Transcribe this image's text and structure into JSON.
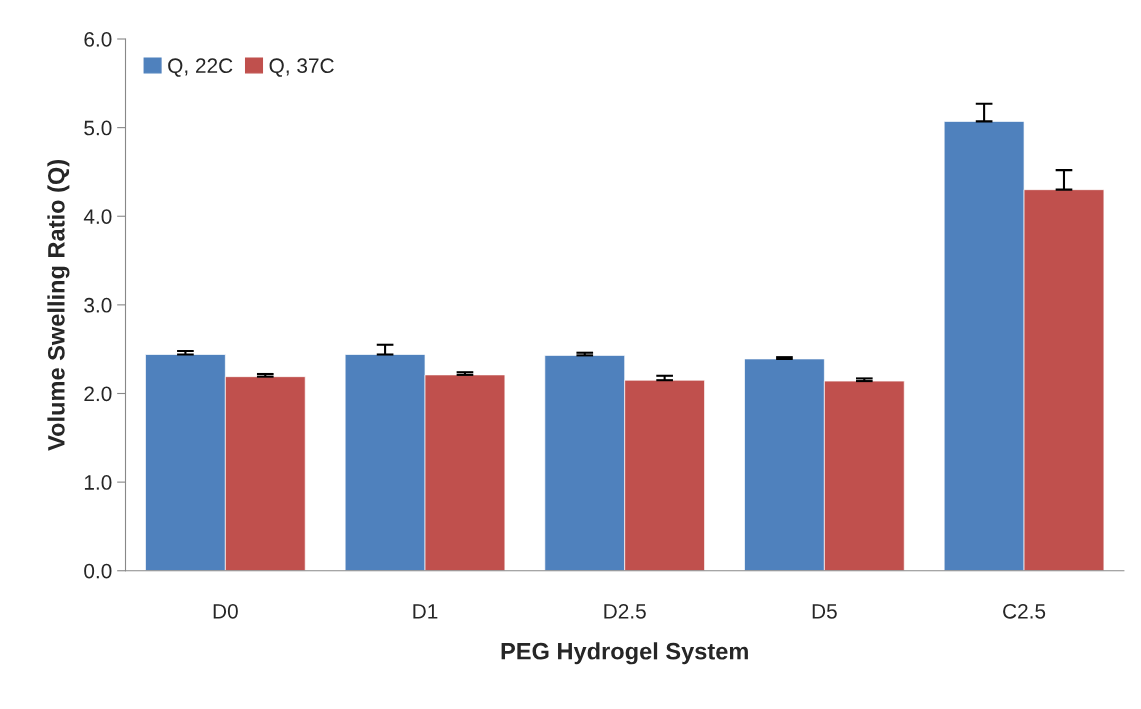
{
  "chart_data": {
    "type": "bar",
    "xlabel": "PEG Hydrogel System",
    "ylabel": "Volume Swelling Ratio (Q)",
    "categories": [
      "D0",
      "D1",
      "D2.5",
      "D5",
      "C2.5"
    ],
    "series": [
      {
        "name": "Q, 22C",
        "color": "#4f81bd",
        "values": [
          2.44,
          2.44,
          2.43,
          2.39,
          5.07
        ],
        "errors": [
          [
            2.44,
            2.48
          ],
          [
            2.44,
            2.55
          ],
          [
            2.43,
            2.46
          ],
          [
            2.39,
            2.41
          ],
          [
            5.07,
            5.27
          ]
        ]
      },
      {
        "name": "Q, 37C",
        "color": "#c0504d",
        "values": [
          2.19,
          2.21,
          2.15,
          2.14,
          4.3
        ],
        "errors": [
          [
            2.19,
            2.22
          ],
          [
            2.21,
            2.24
          ],
          [
            2.15,
            2.2
          ],
          [
            2.14,
            2.17
          ],
          [
            4.3,
            4.52
          ]
        ]
      }
    ],
    "ylim": [
      0,
      6
    ],
    "yticks": [
      {
        "value": 0,
        "label": "0.0"
      },
      {
        "value": 1,
        "label": "1.0"
      },
      {
        "value": 2,
        "label": "2.0"
      },
      {
        "value": 3,
        "label": "3.0"
      },
      {
        "value": 4,
        "label": "4.0"
      },
      {
        "value": 5,
        "label": "5.0"
      },
      {
        "value": 6,
        "label": "6.0"
      }
    ],
    "grid": false,
    "legend": "top left"
  }
}
